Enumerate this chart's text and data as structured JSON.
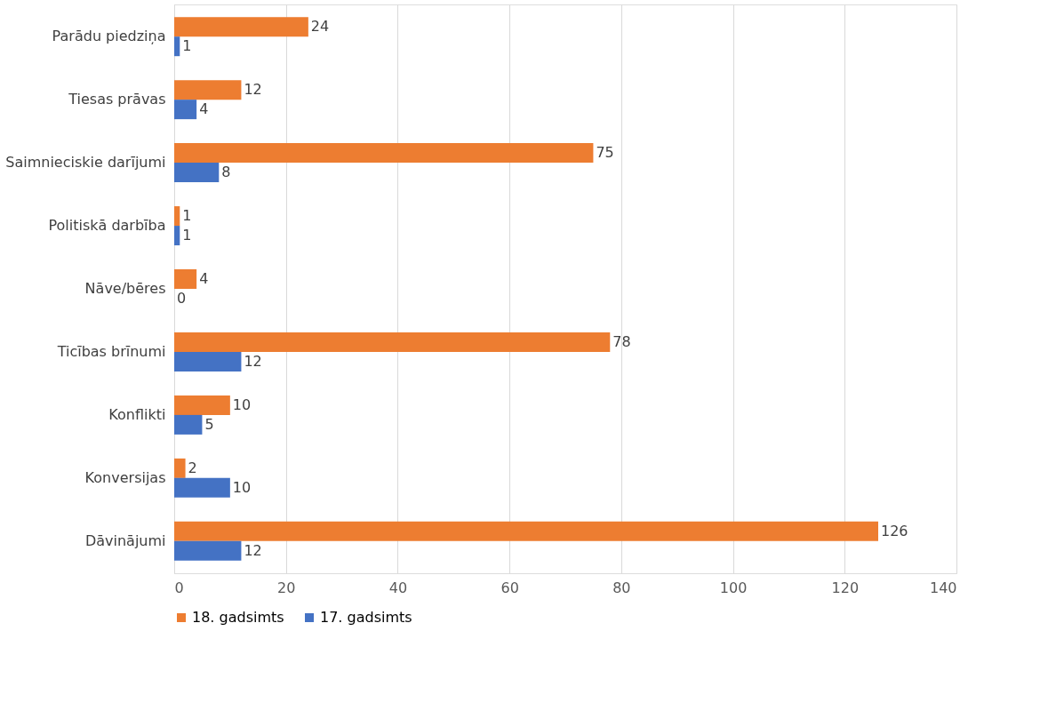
{
  "chart_data": {
    "type": "bar",
    "orientation": "horizontal",
    "categories": [
      "Parādu piedziņa",
      "Tiesas prāvas",
      "Saimnieciskie darījumi",
      "Politiskā darbība",
      "Nāve/bēres",
      "Ticības brīnumi",
      "Konflikti",
      "Konversijas",
      "Dāvinājumi"
    ],
    "series": [
      {
        "name": "18. gadsimts",
        "color": "#ed7d31",
        "values": [
          24,
          12,
          75,
          1,
          4,
          78,
          10,
          2,
          126
        ]
      },
      {
        "name": "17. gadsimts",
        "color": "#4472c4",
        "values": [
          1,
          4,
          8,
          1,
          0,
          12,
          5,
          10,
          12
        ]
      }
    ],
    "xlim": [
      0,
      140
    ],
    "xticks": [
      0,
      20,
      40,
      60,
      80,
      100,
      120,
      140
    ],
    "grid": "x",
    "legend": "bottom",
    "data_labels": true
  }
}
